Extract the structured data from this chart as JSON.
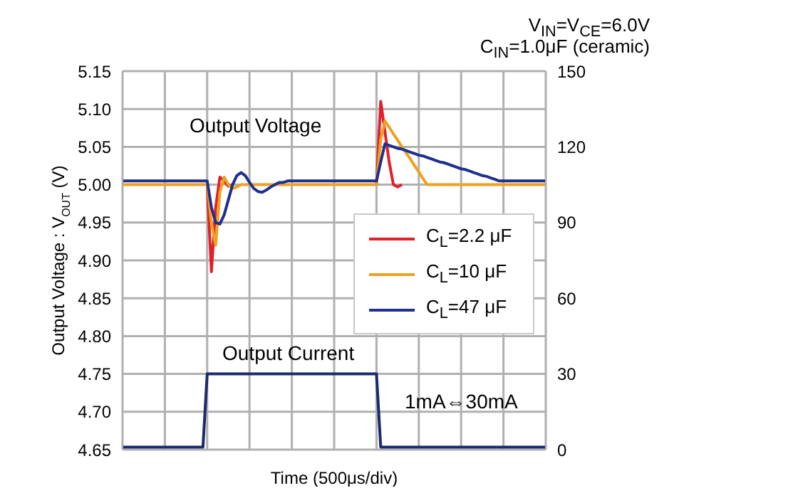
{
  "chart_data": {
    "type": "line",
    "xlabel": "Time (500μs/div)",
    "ylabel": "Output Voltage : V$_{OUT}$ (V)",
    "annotations": [
      "V$_{IN}$=V$_{CE}$=6.0V",
      "C$_{IN}$=1.0μF (ceramic)",
      "Output Voltage",
      "Output Current",
      "1mA⇔30mA"
    ],
    "categories": [
      null,
      null,
      null,
      null,
      null,
      null,
      null,
      null,
      null,
      null,
      null,
      null,
      null,
      null,
      null,
      null,
      null,
      null,
      null,
      null,
      null,
      null,
      null,
      null,
      null,
      null,
      null,
      null,
      null,
      null,
      null,
      null,
      null,
      null,
      null,
      null,
      null,
      null,
      null,
      null,
      null,
      null,
      null,
      null,
      null,
      null,
      null,
      null,
      null,
      null,
      null,
      null,
      null,
      null,
      null,
      null,
      null,
      null,
      null,
      null,
      null,
      null,
      null,
      null,
      null,
      null,
      null,
      null,
      null,
      null,
      null,
      null,
      null,
      null,
      null,
      null,
      null,
      null,
      null,
      null,
      null,
      null,
      null,
      null,
      null,
      null,
      null,
      null,
      null,
      null,
      null,
      null,
      null,
      null,
      null,
      null,
      null,
      null,
      null,
      null,
      null
    ],
    "series": [
      {
        "name": "C$_{L}$=2.2 μF",
        "color": "#e0202a",
        "values": [
          null,
          null,
          null,
          null,
          null,
          null,
          null,
          null,
          null,
          null,
          null,
          null,
          null,
          null,
          null,
          null,
          null,
          null,
          null,
          null,
          5,
          4.885,
          4.97,
          5.01,
          5.005,
          4.998,
          5,
          null,
          null,
          null,
          null,
          null,
          null,
          null,
          null,
          null,
          null,
          null,
          null,
          null,
          null,
          null,
          null,
          null,
          null,
          null,
          null,
          null,
          null,
          null,
          null,
          null,
          null,
          null,
          null,
          null,
          null,
          null,
          null,
          null,
          5,
          5.11,
          5.07,
          5.03,
          5,
          4.997,
          5,
          null,
          null,
          null,
          null,
          null,
          null,
          null,
          null,
          null,
          null,
          null,
          null,
          null,
          null,
          null,
          null,
          null,
          null,
          null,
          null,
          null,
          null,
          null,
          null,
          null,
          null,
          null,
          null,
          null,
          null,
          null,
          null,
          null,
          null
        ]
      },
      {
        "name": "C$_{L}$=10 μF",
        "color": "#f0a020",
        "values": [
          5,
          5,
          5,
          5,
          5,
          5,
          5,
          5,
          5,
          5,
          5,
          5,
          5,
          5,
          5,
          5,
          5,
          5,
          5,
          5,
          5,
          4.95,
          4.92,
          4.99,
          5.01,
          5,
          4.995,
          4.997,
          5,
          5,
          5,
          5,
          5,
          5,
          5,
          5,
          5,
          5,
          5,
          5,
          5,
          5,
          5,
          5,
          5,
          5,
          5,
          5,
          5,
          5,
          5,
          5,
          5,
          5,
          5,
          5,
          5,
          5,
          5,
          5,
          5,
          5.06,
          5.084,
          5.076,
          5.067,
          5.059,
          5.05,
          5.042,
          5.034,
          5.025,
          5.017,
          5.008,
          5,
          5,
          5,
          5,
          5,
          5,
          5,
          5,
          5,
          5,
          5,
          5,
          5,
          5,
          5,
          5,
          5,
          5,
          5,
          5,
          5,
          5,
          5,
          5,
          5,
          5,
          5,
          5,
          5
        ]
      },
      {
        "name": "C$_{L}$=47 μF",
        "color": "#1f2f8f",
        "values": [
          5.005,
          5.005,
          5.005,
          5.005,
          5.005,
          5.005,
          5.005,
          5.005,
          5.005,
          5.005,
          5.005,
          5.005,
          5.005,
          5.005,
          5.005,
          5.005,
          5.005,
          5.005,
          5.005,
          5.005,
          5.005,
          4.97,
          4.95,
          4.948,
          4.96,
          4.98,
          5,
          5.012,
          5.016,
          5.012,
          5.003,
          4.995,
          4.991,
          4.99,
          4.993,
          4.997,
          5,
          5.003,
          5.003,
          5.005,
          5.005,
          5.005,
          5.005,
          5.005,
          5.005,
          5.005,
          5.005,
          5.005,
          5.005,
          5.005,
          5.005,
          5.005,
          5.005,
          5.005,
          5.005,
          5.005,
          5.005,
          5.005,
          5.005,
          5.005,
          5.005,
          5.03,
          5.054,
          5.052,
          5.05,
          5.048,
          5.047,
          5.045,
          5.043,
          5.041,
          5.039,
          5.038,
          5.036,
          5.034,
          5.032,
          5.03,
          5.029,
          5.027,
          5.025,
          5.023,
          5.021,
          5.02,
          5.018,
          5.016,
          5.014,
          5.012,
          5.011,
          5.009,
          5.007,
          5.005,
          5.005,
          5.005,
          5.005,
          5.005,
          5.005,
          5.005,
          5.005,
          5.005,
          5.005,
          5.005,
          5.005
        ]
      },
      {
        "color": "#1a2a6c",
        "axis": "y2",
        "values": [
          1,
          1,
          1,
          1,
          1,
          1,
          1,
          1,
          1,
          1,
          1,
          1,
          1,
          1,
          1,
          1,
          1,
          1,
          1,
          1,
          30,
          30,
          30,
          30,
          30,
          30,
          30,
          30,
          30,
          30,
          30,
          30,
          30,
          30,
          30,
          30,
          30,
          30,
          30,
          30,
          30,
          30,
          30,
          30,
          30,
          30,
          30,
          30,
          30,
          30,
          30,
          30,
          30,
          30,
          30,
          30,
          30,
          30,
          30,
          30,
          30,
          1,
          1,
          1,
          1,
          1,
          1,
          1,
          1,
          1,
          1,
          1,
          1,
          1,
          1,
          1,
          1,
          1,
          1,
          1,
          1,
          1,
          1,
          1,
          1,
          1,
          1,
          1,
          1,
          1,
          1,
          1,
          1,
          1,
          1,
          1,
          1,
          1,
          1,
          1,
          1
        ]
      }
    ],
    "ylim": [
      4.65,
      5.15
    ],
    "yticks": [
      4.65,
      {
        "value": 4.7,
        "label": "4.70"
      },
      4.75,
      {
        "value": 4.8,
        "label": "4.80"
      },
      4.85,
      {
        "value": 4.9,
        "label": "4.90"
      },
      4.95,
      {
        "value": 5,
        "label": "5.00"
      },
      5.05,
      {
        "value": 5.1,
        "label": "5.10"
      },
      5.15
    ],
    "y2lim": [
      0,
      150
    ],
    "y2ticks": [
      0,
      30,
      60,
      90,
      120,
      150
    ],
    "grid": true,
    "legend": "right",
    "tick_labels": "y",
    "marker": "none",
    "line_style": "solid"
  }
}
